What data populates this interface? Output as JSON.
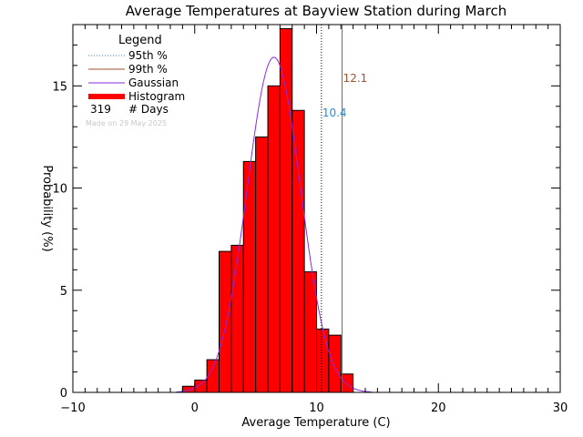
{
  "chart_data": {
    "type": "bar",
    "title": "Average Temperatures at Bayview Station during March",
    "xlabel": "Average Temperature (C)",
    "ylabel": "Probability (%)",
    "xlim": [
      -10,
      30
    ],
    "ylim": [
      0,
      18
    ],
    "x_ticks": [
      -10,
      0,
      10,
      20,
      30
    ],
    "y_ticks": [
      0,
      5,
      10,
      15
    ],
    "legend_title": "Legend",
    "legend": [
      {
        "label": "95th %",
        "style": "dotted",
        "color": "#1f8fd8"
      },
      {
        "label": "99th %",
        "style": "solid",
        "color": "#a0522d"
      },
      {
        "label": "Gaussian",
        "style": "solid",
        "color": "#8a2be2"
      },
      {
        "label": "Histogram",
        "style": "thick",
        "color": "#ff0000"
      }
    ],
    "days_count": "319",
    "days_label": "# Days",
    "made_on": "Made on 29 May 2025",
    "histogram": {
      "bin_left_edges": [
        -1,
        0,
        1,
        2,
        3,
        4,
        5,
        6,
        7,
        8,
        9,
        10,
        11,
        12
      ],
      "bin_width": 1,
      "values": [
        0.3,
        0.6,
        1.6,
        6.9,
        7.2,
        11.3,
        12.5,
        15.0,
        17.8,
        13.8,
        5.9,
        3.1,
        2.8,
        0.9
      ],
      "color": "#ff0000"
    },
    "gaussian": {
      "mean": 6.5,
      "sd": 2.2,
      "peak": 16.4,
      "x_range": [
        -1.5,
        14.5
      ],
      "color": "#8a2be2"
    },
    "percentile_95": {
      "value": 10.4,
      "label": "10.4",
      "color": "#1f8fd8"
    },
    "percentile_99": {
      "value": 12.1,
      "label": "12.1",
      "color": "#a0522d"
    }
  }
}
